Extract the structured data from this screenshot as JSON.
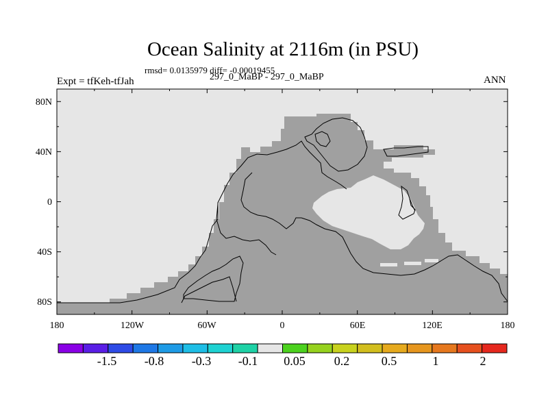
{
  "header": {
    "title": "Ocean Salinity at 2116m (in PSU)",
    "stats": "rmsd= 0.0135979 diff= -0.00019455",
    "subtitle": "297_0_MaBP - 297_0_MaBP",
    "experiment": "Expt = tfKeh-tfJah",
    "season": "ANN"
  },
  "map": {
    "lat_labels": [
      "80N",
      "40N",
      "0",
      "40S",
      "80S"
    ],
    "lon_labels": [
      "180",
      "120W",
      "60W",
      "0",
      "60E",
      "120E",
      "180"
    ],
    "colors": {
      "ocean_light": "#e6e6e6",
      "ocean_grey": "#a0a0a0",
      "coast": "#000000"
    }
  },
  "colorbar": {
    "colors": [
      "#8a00e6",
      "#5a1ee6",
      "#2e4be6",
      "#1e78e6",
      "#1e9be6",
      "#1ebee6",
      "#1ed2d2",
      "#1ed2a6",
      "#e6e6e6",
      "#4cd21e",
      "#96d21e",
      "#c8d21e",
      "#d2be1e",
      "#e6aa1e",
      "#e6961e",
      "#e6781e",
      "#e6501e",
      "#e6281e"
    ],
    "tick_labels": [
      "-1.5",
      "-0.8",
      "-0.3",
      "-0.1",
      "0.05",
      "0.2",
      "0.5",
      "1",
      "2"
    ]
  }
}
